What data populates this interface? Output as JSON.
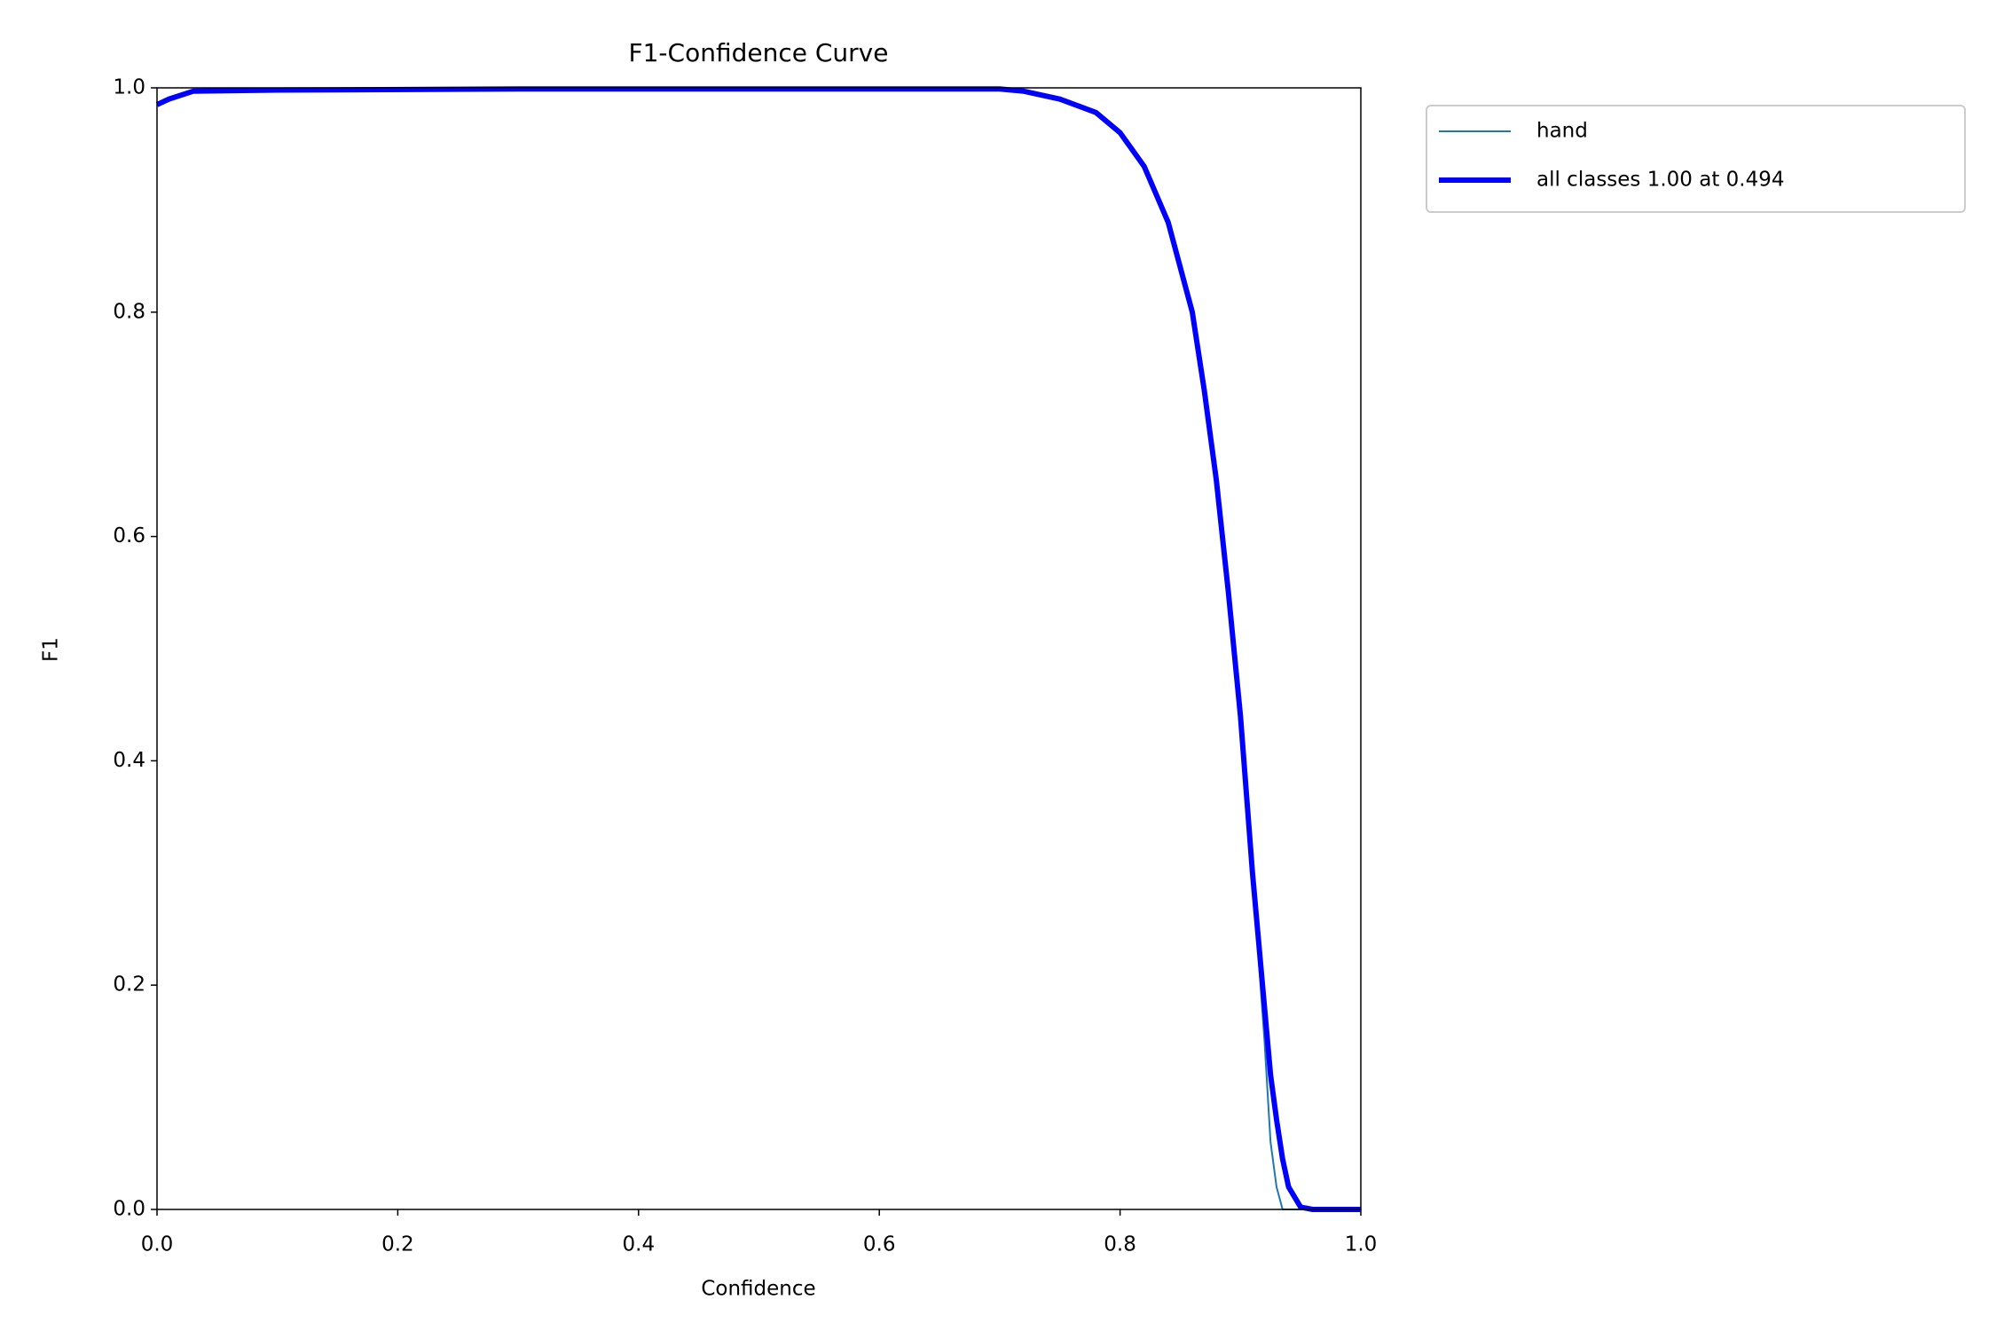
{
  "chart_data": {
    "type": "line",
    "title": "F1-Confidence Curve",
    "xlabel": "Confidence",
    "ylabel": "F1",
    "x": [
      0,
      0.01,
      0.03,
      0.1,
      0.3,
      0.5,
      0.7,
      0.72,
      0.75,
      0.78,
      0.8,
      0.82,
      0.84,
      0.86,
      0.87,
      0.88,
      0.89,
      0.9,
      0.91,
      0.92,
      0.925,
      0.93,
      0.935,
      0.94,
      0.95,
      0.96,
      1.0
    ],
    "series": [
      {
        "name": "hand",
        "color": "#1f77b4",
        "width": 2,
        "values": [
          0.985,
          0.99,
          0.997,
          0.998,
          0.999,
          0.999,
          0.999,
          0.997,
          0.99,
          0.978,
          0.96,
          0.93,
          0.88,
          0.8,
          0.73,
          0.65,
          0.55,
          0.44,
          0.3,
          0.15,
          0.06,
          0.02,
          0,
          0,
          0,
          0,
          0
        ]
      },
      {
        "name": "all classes 1.00 at 0.494",
        "color": "#0000ff",
        "width": 6,
        "values": [
          0.985,
          0.99,
          0.997,
          0.998,
          0.999,
          0.999,
          0.999,
          0.997,
          0.99,
          0.978,
          0.96,
          0.93,
          0.88,
          0.8,
          0.73,
          0.65,
          0.55,
          0.44,
          0.3,
          0.18,
          0.12,
          0.08,
          0.045,
          0.02,
          0.002,
          0,
          0
        ]
      }
    ],
    "xlim": [
      0,
      1
    ],
    "ylim": [
      0,
      1
    ],
    "xticks": [
      {
        "value": 0,
        "label": "0.0"
      },
      0.2,
      0.4,
      0.6,
      0.8,
      {
        "value": 1,
        "label": "1.0"
      }
    ],
    "yticks": [
      {
        "value": 0,
        "label": "0.0"
      },
      0.2,
      0.4,
      0.6,
      0.8,
      {
        "value": 1,
        "label": "1.0"
      }
    ]
  }
}
